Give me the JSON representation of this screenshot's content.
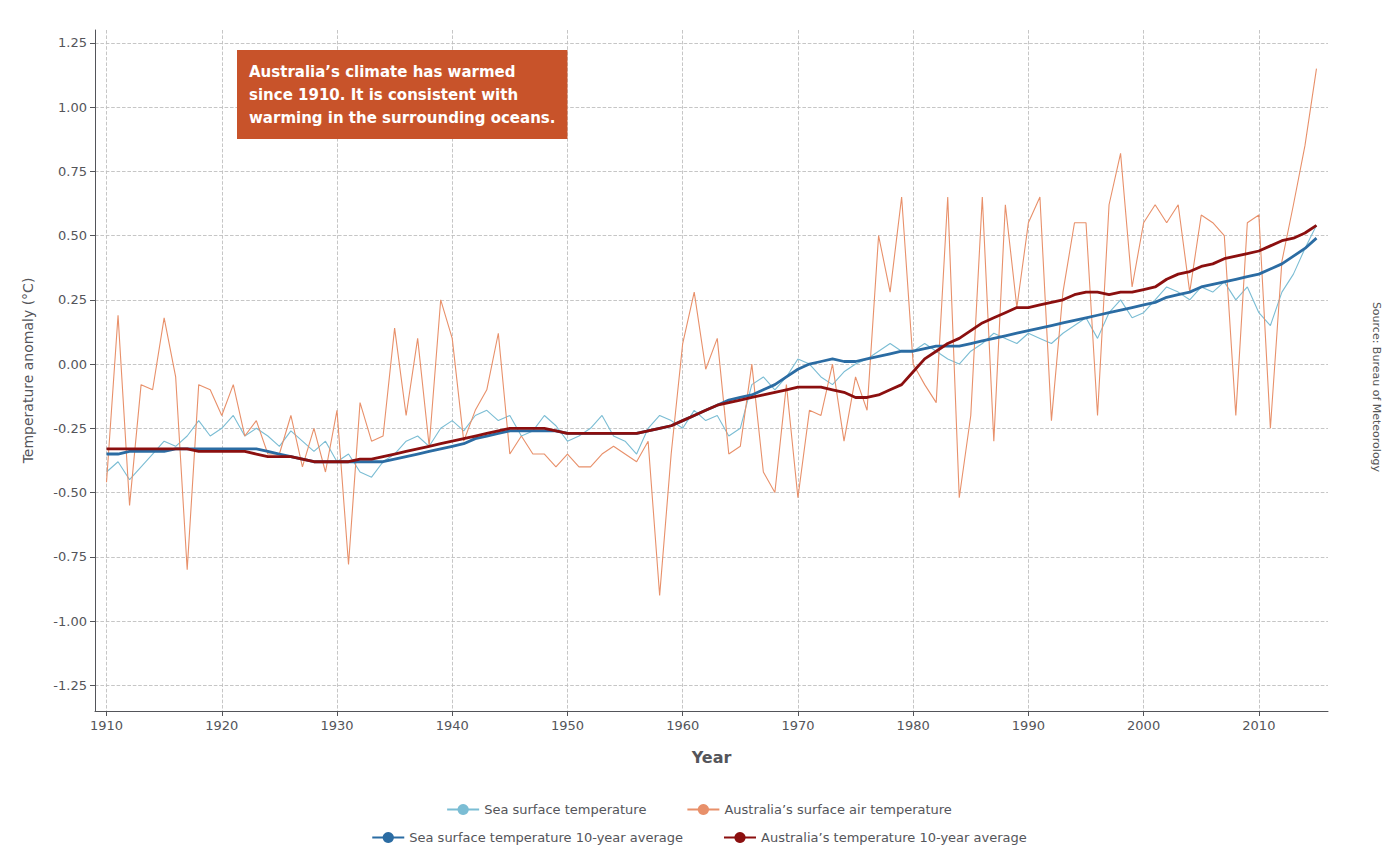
{
  "chart_data": {
    "type": "line",
    "annotation": {
      "text": "Australia’s climate has warmed\nsince 1910. It is consistent with\nwarming in the surrounding oceans.",
      "color": "#c8532a"
    },
    "source": "Source: Bureau of Meteorology",
    "xlabel": "Year",
    "ylabel": "Temperature anomaly (°C)",
    "xlim": [
      1909,
      2016
    ],
    "xticks": [
      1910,
      1920,
      1930,
      1940,
      1950,
      1960,
      1970,
      1980,
      1990,
      2000,
      2010
    ],
    "ylim": [
      -1.35,
      1.3
    ],
    "yticks": [
      -1.25,
      {
        "value": -1.0,
        "label": "-1.00"
      },
      -0.75,
      {
        "value": -0.5,
        "label": "-0.50"
      },
      -0.25,
      {
        "value": 0.0,
        "label": "0.00"
      },
      0.25,
      {
        "value": 0.5,
        "label": "0.50"
      },
      0.75,
      {
        "value": 1.0,
        "label": "1.00"
      },
      1.25
    ],
    "grid": true,
    "legend": "bottom",
    "x": [
      1910,
      1911,
      1912,
      1913,
      1914,
      1915,
      1916,
      1917,
      1918,
      1919,
      1920,
      1921,
      1922,
      1923,
      1924,
      1925,
      1926,
      1927,
      1928,
      1929,
      1930,
      1931,
      1932,
      1933,
      1934,
      1935,
      1936,
      1937,
      1938,
      1939,
      1940,
      1941,
      1942,
      1943,
      1944,
      1945,
      1946,
      1947,
      1948,
      1949,
      1950,
      1951,
      1952,
      1953,
      1954,
      1955,
      1956,
      1957,
      1958,
      1959,
      1960,
      1961,
      1962,
      1963,
      1964,
      1965,
      1966,
      1967,
      1968,
      1969,
      1970,
      1971,
      1972,
      1973,
      1974,
      1975,
      1976,
      1977,
      1978,
      1979,
      1980,
      1981,
      1982,
      1983,
      1984,
      1985,
      1986,
      1987,
      1988,
      1989,
      1990,
      1991,
      1992,
      1993,
      1994,
      1995,
      1996,
      1997,
      1998,
      1999,
      2000,
      2001,
      2002,
      2003,
      2004,
      2005,
      2006,
      2007,
      2008,
      2009,
      2010,
      2011,
      2012,
      2013,
      2014,
      2015
    ],
    "series": [
      {
        "name": "Sea surface temperature",
        "color": "#7bbdd4",
        "values": [
          -0.42,
          -0.38,
          -0.45,
          -0.4,
          -0.35,
          -0.3,
          -0.32,
          -0.28,
          -0.22,
          -0.28,
          -0.25,
          -0.2,
          -0.28,
          -0.25,
          -0.28,
          -0.32,
          -0.26,
          -0.3,
          -0.34,
          -0.3,
          -0.38,
          -0.35,
          -0.42,
          -0.44,
          -0.38,
          -0.35,
          -0.3,
          -0.28,
          -0.32,
          -0.25,
          -0.22,
          -0.26,
          -0.2,
          -0.18,
          -0.22,
          -0.2,
          -0.28,
          -0.26,
          -0.2,
          -0.24,
          -0.3,
          -0.28,
          -0.25,
          -0.2,
          -0.28,
          -0.3,
          -0.35,
          -0.25,
          -0.2,
          -0.22,
          -0.25,
          -0.18,
          -0.22,
          -0.2,
          -0.28,
          -0.25,
          -0.08,
          -0.05,
          -0.1,
          -0.05,
          0.02,
          0.0,
          -0.05,
          -0.08,
          -0.03,
          0.0,
          0.02,
          0.05,
          0.08,
          0.05,
          0.05,
          0.08,
          0.05,
          0.02,
          0.0,
          0.05,
          0.08,
          0.12,
          0.1,
          0.08,
          0.12,
          0.1,
          0.08,
          0.12,
          0.15,
          0.18,
          0.1,
          0.2,
          0.25,
          0.18,
          0.2,
          0.25,
          0.3,
          0.28,
          0.25,
          0.3,
          0.28,
          0.32,
          0.25,
          0.3,
          0.2,
          0.15,
          0.28,
          0.35,
          0.45,
          0.54
        ]
      },
      {
        "name": "Australia’s surface air temperature",
        "color": "#e8906a",
        "values": [
          -0.46,
          0.19,
          -0.55,
          -0.08,
          -0.1,
          0.18,
          -0.05,
          -0.8,
          -0.08,
          -0.1,
          -0.2,
          -0.08,
          -0.28,
          -0.22,
          -0.35,
          -0.35,
          -0.2,
          -0.4,
          -0.25,
          -0.42,
          -0.18,
          -0.78,
          -0.15,
          -0.3,
          -0.28,
          0.14,
          -0.2,
          0.1,
          -0.32,
          0.25,
          0.1,
          -0.3,
          -0.18,
          -0.1,
          0.12,
          -0.35,
          -0.28,
          -0.35,
          -0.35,
          -0.4,
          -0.35,
          -0.4,
          -0.4,
          -0.35,
          -0.32,
          -0.35,
          -0.38,
          -0.3,
          -0.9,
          -0.35,
          0.08,
          0.28,
          -0.02,
          0.1,
          -0.35,
          -0.32,
          0.0,
          -0.42,
          -0.5,
          -0.08,
          -0.52,
          -0.18,
          -0.2,
          0.0,
          -0.3,
          -0.05,
          -0.18,
          0.5,
          0.28,
          0.65,
          0.0,
          -0.08,
          -0.15,
          0.65,
          -0.52,
          -0.2,
          0.65,
          -0.3,
          0.62,
          0.22,
          0.55,
          0.65,
          -0.22,
          0.28,
          0.55,
          0.55,
          -0.2,
          0.62,
          0.82,
          0.3,
          0.55,
          0.62,
          0.55,
          0.62,
          0.28,
          0.58,
          0.55,
          0.5,
          -0.2,
          0.55,
          0.58,
          -0.25,
          0.4,
          0.62,
          0.85,
          1.15
        ]
      },
      {
        "name": "Sea surface temperature 10-year average",
        "color": "#2b6ca3",
        "values": [
          -0.35,
          -0.35,
          -0.34,
          -0.34,
          -0.34,
          -0.34,
          -0.33,
          -0.33,
          -0.33,
          -0.33,
          -0.33,
          -0.33,
          -0.33,
          -0.33,
          -0.34,
          -0.35,
          -0.36,
          -0.37,
          -0.38,
          -0.38,
          -0.38,
          -0.38,
          -0.38,
          -0.38,
          -0.38,
          -0.37,
          -0.36,
          -0.35,
          -0.34,
          -0.33,
          -0.32,
          -0.31,
          -0.29,
          -0.28,
          -0.27,
          -0.26,
          -0.26,
          -0.26,
          -0.26,
          -0.26,
          -0.27,
          -0.27,
          -0.27,
          -0.27,
          -0.27,
          -0.27,
          -0.27,
          -0.26,
          -0.25,
          -0.24,
          -0.22,
          -0.2,
          -0.18,
          -0.16,
          -0.14,
          -0.13,
          -0.12,
          -0.1,
          -0.08,
          -0.05,
          -0.02,
          0.0,
          0.01,
          0.02,
          0.01,
          0.01,
          0.02,
          0.03,
          0.04,
          0.05,
          0.05,
          0.06,
          0.07,
          0.07,
          0.07,
          0.08,
          0.09,
          0.1,
          0.11,
          0.12,
          0.13,
          0.14,
          0.15,
          0.16,
          0.17,
          0.18,
          0.19,
          0.2,
          0.21,
          0.22,
          0.23,
          0.24,
          0.26,
          0.27,
          0.28,
          0.3,
          0.31,
          0.32,
          0.33,
          0.34,
          0.35,
          0.37,
          0.39,
          0.42,
          0.45,
          0.49
        ]
      },
      {
        "name": "Australia’s temperature 10-year average",
        "color": "#8b0f0f",
        "values": [
          -0.33,
          -0.33,
          -0.33,
          -0.33,
          -0.33,
          -0.33,
          -0.33,
          -0.33,
          -0.34,
          -0.34,
          -0.34,
          -0.34,
          -0.34,
          -0.35,
          -0.36,
          -0.36,
          -0.36,
          -0.37,
          -0.38,
          -0.38,
          -0.38,
          -0.38,
          -0.37,
          -0.37,
          -0.36,
          -0.35,
          -0.34,
          -0.33,
          -0.32,
          -0.31,
          -0.3,
          -0.29,
          -0.28,
          -0.27,
          -0.26,
          -0.25,
          -0.25,
          -0.25,
          -0.25,
          -0.26,
          -0.27,
          -0.27,
          -0.27,
          -0.27,
          -0.27,
          -0.27,
          -0.27,
          -0.26,
          -0.25,
          -0.24,
          -0.22,
          -0.2,
          -0.18,
          -0.16,
          -0.15,
          -0.14,
          -0.13,
          -0.12,
          -0.11,
          -0.1,
          -0.09,
          -0.09,
          -0.09,
          -0.1,
          -0.11,
          -0.13,
          -0.13,
          -0.12,
          -0.1,
          -0.08,
          -0.03,
          0.02,
          0.05,
          0.08,
          0.1,
          0.13,
          0.16,
          0.18,
          0.2,
          0.22,
          0.22,
          0.23,
          0.24,
          0.25,
          0.27,
          0.28,
          0.28,
          0.27,
          0.28,
          0.28,
          0.29,
          0.3,
          0.33,
          0.35,
          0.36,
          0.38,
          0.39,
          0.41,
          0.42,
          0.43,
          0.44,
          0.46,
          0.48,
          0.49,
          0.51,
          0.54
        ]
      }
    ]
  }
}
